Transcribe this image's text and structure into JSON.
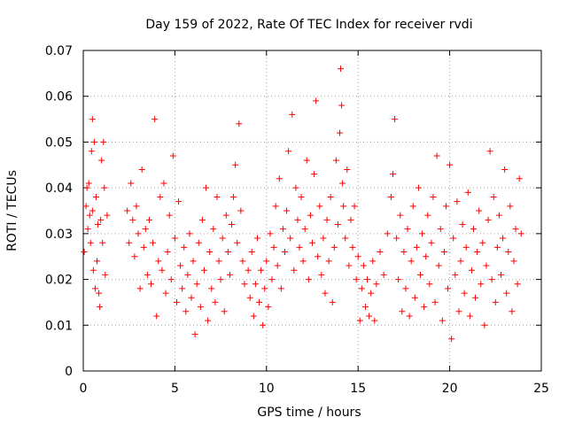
{
  "chart_data": {
    "type": "scatter",
    "title": "Day 159 of 2022, Rate Of TEC Index for receiver rvdi",
    "xlabel": "GPS time / hours",
    "ylabel": "ROTI / TECUs",
    "xlim": [
      0,
      25
    ],
    "ylim": [
      0,
      0.07
    ],
    "x_ticks": [
      0,
      5,
      10,
      15,
      20,
      25
    ],
    "x_tick_labels": [
      "0",
      "5",
      "10",
      "15",
      "20",
      "25"
    ],
    "y_ticks": [
      0,
      0.01,
      0.02,
      0.03,
      0.04,
      0.05,
      0.06,
      0.07
    ],
    "y_tick_labels": [
      "0",
      "0.01",
      "0.02",
      "0.03",
      "0.04",
      "0.05",
      "0.06",
      "0.07"
    ],
    "grid": true,
    "marker": "plus",
    "color": "#ff0000",
    "series": [
      {
        "points": [
          [
            0.05,
            0.026
          ],
          [
            0.15,
            0.036
          ],
          [
            0.2,
            0.04
          ],
          [
            0.25,
            0.031
          ],
          [
            0.3,
            0.041
          ],
          [
            0.35,
            0.034
          ],
          [
            0.4,
            0.028
          ],
          [
            0.45,
            0.048
          ],
          [
            0.5,
            0.035
          ],
          [
            0.5,
            0.055
          ],
          [
            0.55,
            0.022
          ],
          [
            0.6,
            0.05
          ],
          [
            0.65,
            0.018
          ],
          [
            0.7,
            0.038
          ],
          [
            0.75,
            0.024
          ],
          [
            0.8,
            0.032
          ],
          [
            0.85,
            0.017
          ],
          [
            0.9,
            0.014
          ],
          [
            0.95,
            0.033
          ],
          [
            1.0,
            0.046
          ],
          [
            1.05,
            0.028
          ],
          [
            1.1,
            0.05
          ],
          [
            1.15,
            0.04
          ],
          [
            1.2,
            0.021
          ],
          [
            1.3,
            0.034
          ],
          [
            2.4,
            0.035
          ],
          [
            2.5,
            0.028
          ],
          [
            2.6,
            0.041
          ],
          [
            2.7,
            0.033
          ],
          [
            2.8,
            0.025
          ],
          [
            2.9,
            0.036
          ],
          [
            3.0,
            0.03
          ],
          [
            3.1,
            0.018
          ],
          [
            3.2,
            0.044
          ],
          [
            3.3,
            0.027
          ],
          [
            3.4,
            0.031
          ],
          [
            3.5,
            0.021
          ],
          [
            3.6,
            0.033
          ],
          [
            3.7,
            0.019
          ],
          [
            3.8,
            0.028
          ],
          [
            3.9,
            0.055
          ],
          [
            4.0,
            0.012
          ],
          [
            4.1,
            0.024
          ],
          [
            4.2,
            0.038
          ],
          [
            4.3,
            0.022
          ],
          [
            4.4,
            0.041
          ],
          [
            4.5,
            0.017
          ],
          [
            4.6,
            0.026
          ],
          [
            4.7,
            0.034
          ],
          [
            4.8,
            0.02
          ],
          [
            4.9,
            0.047
          ],
          [
            5.0,
            0.029
          ],
          [
            5.1,
            0.015
          ],
          [
            5.2,
            0.037
          ],
          [
            5.3,
            0.023
          ],
          [
            5.4,
            0.018
          ],
          [
            5.5,
            0.027
          ],
          [
            5.6,
            0.013
          ],
          [
            5.7,
            0.021
          ],
          [
            5.8,
            0.03
          ],
          [
            5.9,
            0.016
          ],
          [
            6.0,
            0.024
          ],
          [
            6.1,
            0.008
          ],
          [
            6.2,
            0.019
          ],
          [
            6.3,
            0.028
          ],
          [
            6.4,
            0.014
          ],
          [
            6.5,
            0.033
          ],
          [
            6.6,
            0.022
          ],
          [
            6.7,
            0.04
          ],
          [
            6.8,
            0.011
          ],
          [
            6.9,
            0.026
          ],
          [
            7.0,
            0.018
          ],
          [
            7.1,
            0.031
          ],
          [
            7.2,
            0.015
          ],
          [
            7.3,
            0.038
          ],
          [
            7.4,
            0.024
          ],
          [
            7.5,
            0.02
          ],
          [
            7.6,
            0.029
          ],
          [
            7.7,
            0.013
          ],
          [
            7.8,
            0.034
          ],
          [
            7.9,
            0.026
          ],
          [
            8.0,
            0.021
          ],
          [
            8.1,
            0.032
          ],
          [
            8.2,
            0.038
          ],
          [
            8.3,
            0.045
          ],
          [
            8.4,
            0.028
          ],
          [
            8.5,
            0.054
          ],
          [
            8.6,
            0.035
          ],
          [
            8.7,
            0.024
          ],
          [
            8.8,
            0.019
          ],
          [
            9.0,
            0.022
          ],
          [
            9.1,
            0.016
          ],
          [
            9.2,
            0.026
          ],
          [
            9.3,
            0.012
          ],
          [
            9.4,
            0.019
          ],
          [
            9.5,
            0.029
          ],
          [
            9.6,
            0.015
          ],
          [
            9.7,
            0.022
          ],
          [
            9.8,
            0.01
          ],
          [
            9.9,
            0.018
          ],
          [
            10.0,
            0.024
          ],
          [
            10.1,
            0.014
          ],
          [
            10.2,
            0.03
          ],
          [
            10.3,
            0.02
          ],
          [
            10.4,
            0.027
          ],
          [
            10.5,
            0.036
          ],
          [
            10.6,
            0.023
          ],
          [
            10.7,
            0.042
          ],
          [
            10.8,
            0.018
          ],
          [
            10.9,
            0.031
          ],
          [
            11.0,
            0.026
          ],
          [
            11.1,
            0.035
          ],
          [
            11.2,
            0.048
          ],
          [
            11.3,
            0.029
          ],
          [
            11.4,
            0.056
          ],
          [
            11.5,
            0.022
          ],
          [
            11.6,
            0.04
          ],
          [
            11.7,
            0.033
          ],
          [
            11.8,
            0.027
          ],
          [
            11.9,
            0.038
          ],
          [
            12.0,
            0.024
          ],
          [
            12.1,
            0.031
          ],
          [
            12.2,
            0.046
          ],
          [
            12.3,
            0.02
          ],
          [
            12.4,
            0.034
          ],
          [
            12.5,
            0.028
          ],
          [
            12.6,
            0.043
          ],
          [
            12.7,
            0.059
          ],
          [
            12.8,
            0.025
          ],
          [
            12.9,
            0.036
          ],
          [
            13.0,
            0.021
          ],
          [
            13.1,
            0.029
          ],
          [
            13.2,
            0.017
          ],
          [
            13.3,
            0.033
          ],
          [
            13.4,
            0.024
          ],
          [
            13.5,
            0.038
          ],
          [
            13.6,
            0.015
          ],
          [
            13.7,
            0.027
          ],
          [
            13.8,
            0.046
          ],
          [
            13.9,
            0.032
          ],
          [
            14.0,
            0.052
          ],
          [
            14.05,
            0.066
          ],
          [
            14.1,
            0.058
          ],
          [
            14.15,
            0.041
          ],
          [
            14.2,
            0.036
          ],
          [
            14.3,
            0.029
          ],
          [
            14.4,
            0.044
          ],
          [
            14.5,
            0.023
          ],
          [
            14.6,
            0.033
          ],
          [
            14.7,
            0.027
          ],
          [
            14.8,
            0.036
          ],
          [
            14.9,
            0.02
          ],
          [
            15.0,
            0.025
          ],
          [
            15.1,
            0.011
          ],
          [
            15.2,
            0.018
          ],
          [
            15.3,
            0.023
          ],
          [
            15.4,
            0.014
          ],
          [
            15.5,
            0.02
          ],
          [
            15.6,
            0.012
          ],
          [
            15.7,
            0.017
          ],
          [
            15.8,
            0.024
          ],
          [
            15.9,
            0.011
          ],
          [
            16.0,
            0.019
          ],
          [
            16.2,
            0.026
          ],
          [
            16.4,
            0.021
          ],
          [
            16.6,
            0.03
          ],
          [
            16.8,
            0.038
          ],
          [
            16.9,
            0.043
          ],
          [
            17.0,
            0.055
          ],
          [
            17.1,
            0.029
          ],
          [
            17.2,
            0.02
          ],
          [
            17.3,
            0.034
          ],
          [
            17.4,
            0.013
          ],
          [
            17.5,
            0.026
          ],
          [
            17.6,
            0.018
          ],
          [
            17.7,
            0.031
          ],
          [
            17.8,
            0.012
          ],
          [
            17.9,
            0.024
          ],
          [
            18.0,
            0.036
          ],
          [
            18.1,
            0.016
          ],
          [
            18.2,
            0.027
          ],
          [
            18.3,
            0.04
          ],
          [
            18.4,
            0.021
          ],
          [
            18.5,
            0.03
          ],
          [
            18.6,
            0.014
          ],
          [
            18.7,
            0.025
          ],
          [
            18.8,
            0.034
          ],
          [
            18.9,
            0.019
          ],
          [
            19.0,
            0.028
          ],
          [
            19.1,
            0.038
          ],
          [
            19.2,
            0.015
          ],
          [
            19.3,
            0.047
          ],
          [
            19.4,
            0.023
          ],
          [
            19.5,
            0.031
          ],
          [
            19.6,
            0.011
          ],
          [
            19.7,
            0.026
          ],
          [
            19.8,
            0.036
          ],
          [
            19.9,
            0.018
          ],
          [
            20.0,
            0.045
          ],
          [
            20.1,
            0.007
          ],
          [
            20.2,
            0.029
          ],
          [
            20.3,
            0.021
          ],
          [
            20.4,
            0.037
          ],
          [
            20.5,
            0.013
          ],
          [
            20.6,
            0.024
          ],
          [
            20.7,
            0.032
          ],
          [
            20.8,
            0.017
          ],
          [
            20.9,
            0.027
          ],
          [
            21.0,
            0.039
          ],
          [
            21.1,
            0.012
          ],
          [
            21.2,
            0.022
          ],
          [
            21.3,
            0.031
          ],
          [
            21.4,
            0.016
          ],
          [
            21.5,
            0.026
          ],
          [
            21.6,
            0.035
          ],
          [
            21.7,
            0.019
          ],
          [
            21.8,
            0.028
          ],
          [
            21.9,
            0.01
          ],
          [
            22.0,
            0.023
          ],
          [
            22.1,
            0.033
          ],
          [
            22.2,
            0.048
          ],
          [
            22.3,
            0.02
          ],
          [
            22.4,
            0.038
          ],
          [
            22.5,
            0.015
          ],
          [
            22.6,
            0.027
          ],
          [
            22.7,
            0.034
          ],
          [
            22.8,
            0.021
          ],
          [
            22.9,
            0.029
          ],
          [
            23.0,
            0.044
          ],
          [
            23.1,
            0.017
          ],
          [
            23.2,
            0.026
          ],
          [
            23.3,
            0.036
          ],
          [
            23.4,
            0.013
          ],
          [
            23.5,
            0.024
          ],
          [
            23.6,
            0.031
          ],
          [
            23.7,
            0.019
          ],
          [
            23.8,
            0.042
          ],
          [
            23.9,
            0.03
          ]
        ]
      }
    ]
  }
}
